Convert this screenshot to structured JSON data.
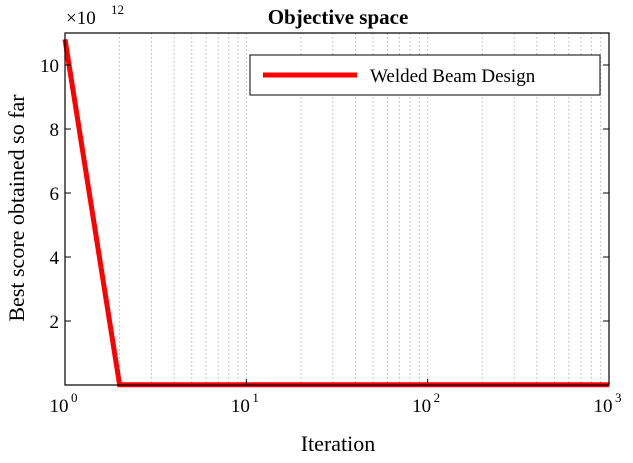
{
  "chart_data": {
    "type": "line",
    "title": "Objective space",
    "xlabel": "Iteration",
    "ylabel": "Best score obtained so far",
    "xscale": "log",
    "xlim": [
      1,
      1000
    ],
    "ylim": [
      0,
      11000000000000.0
    ],
    "y_exponent_label": "×10",
    "y_exponent_power": "12",
    "x_ticks": [
      {
        "value": 1,
        "base": "10",
        "power": "0"
      },
      {
        "value": 10,
        "base": "10",
        "power": "1"
      },
      {
        "value": 100,
        "base": "10",
        "power": "2"
      },
      {
        "value": 1000,
        "base": "10",
        "power": "3"
      }
    ],
    "y_ticks": [
      {
        "value": 2000000000000.0,
        "label": "2"
      },
      {
        "value": 4000000000000.0,
        "label": "4"
      },
      {
        "value": 6000000000000.0,
        "label": "6"
      },
      {
        "value": 8000000000000.0,
        "label": "8"
      },
      {
        "value": 10000000000000.0,
        "label": "10"
      }
    ],
    "grid": "x-log-dotted",
    "legend_position": "top-right",
    "series": [
      {
        "name": "Welded Beam Design",
        "color": "#ff0000",
        "x": [
          1,
          2,
          1000
        ],
        "y": [
          10800000000000.0,
          5000000000.0,
          5000000000.0
        ]
      }
    ]
  }
}
